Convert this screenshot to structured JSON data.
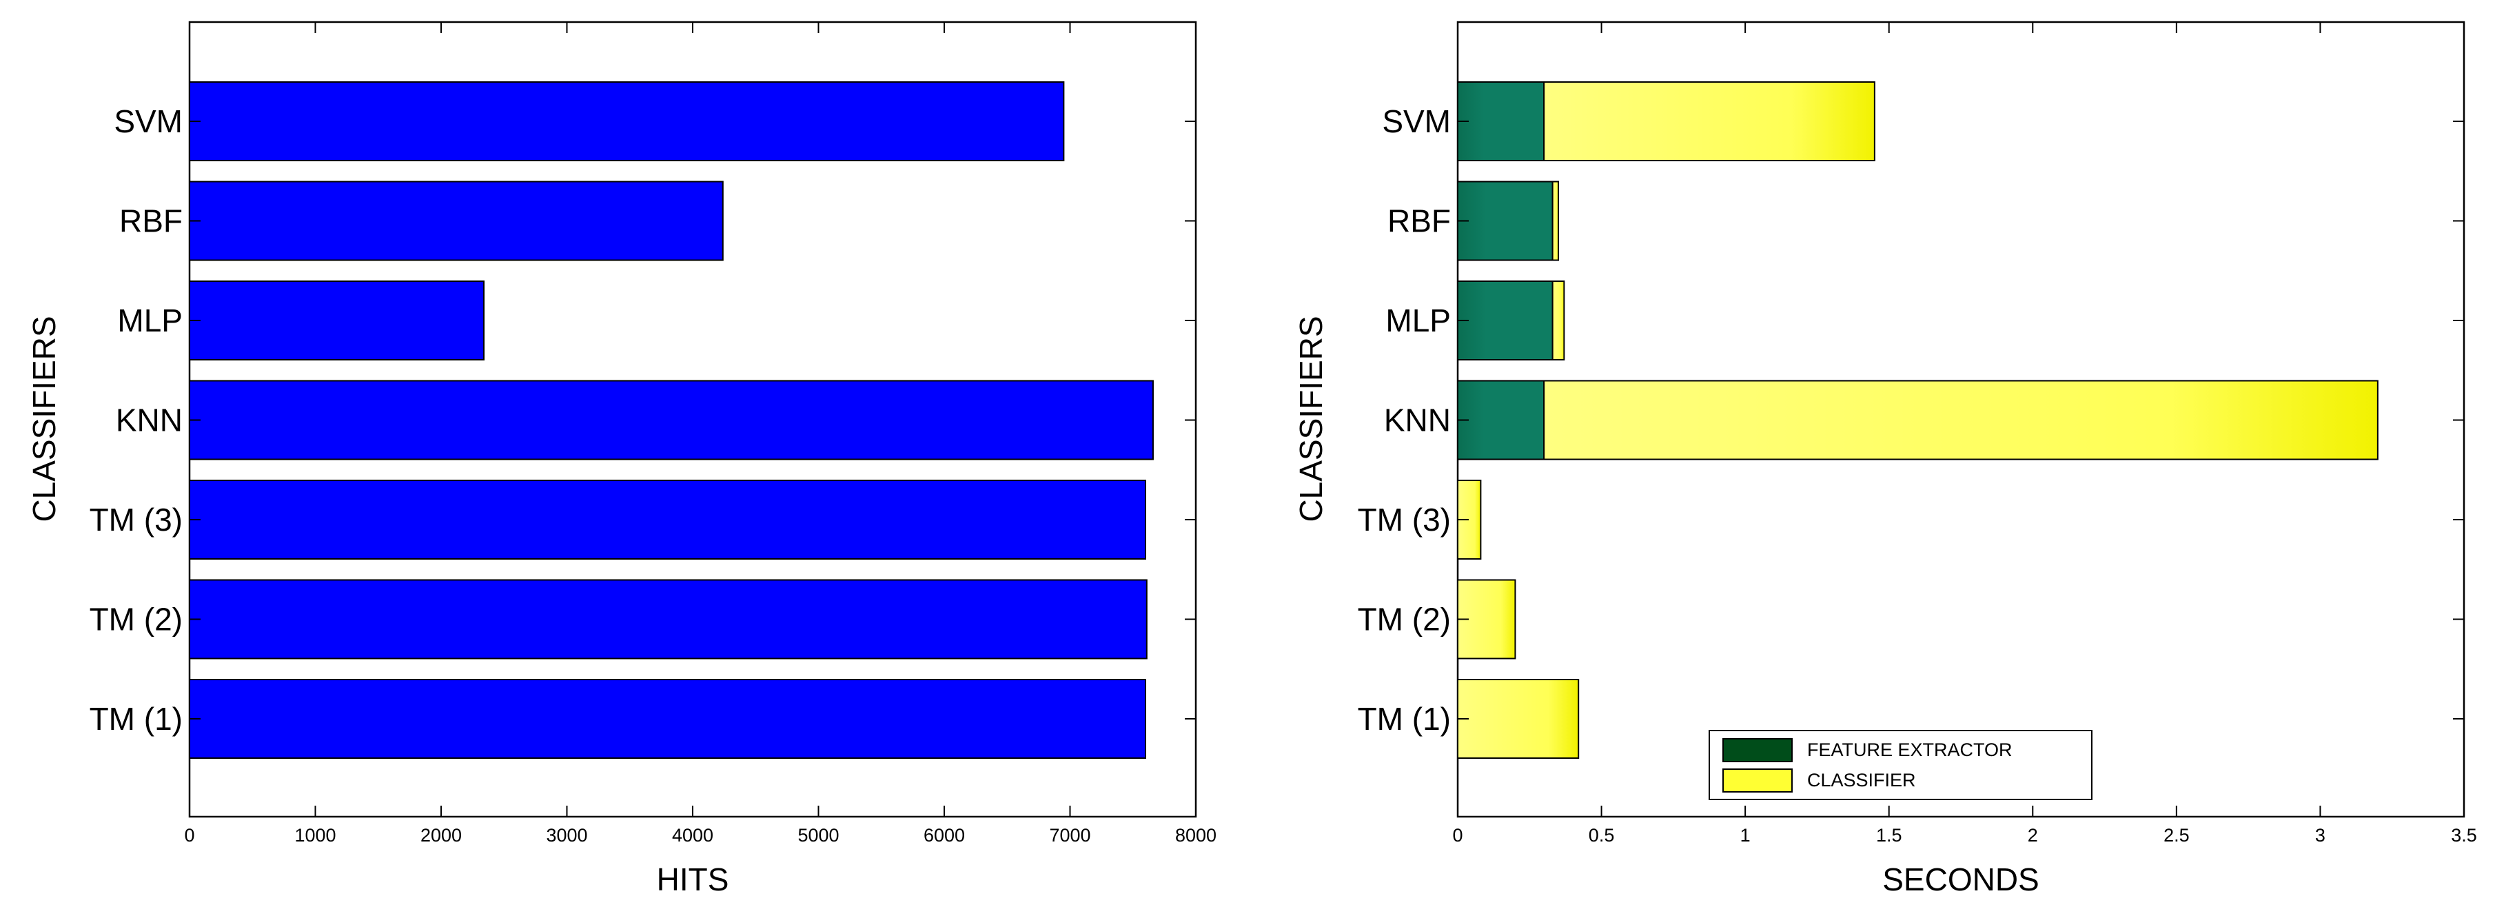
{
  "chart_data": [
    {
      "type": "bar",
      "orientation": "horizontal",
      "categories": [
        "SVM",
        "RBF",
        "MLP",
        "KNN",
        "TM (3)",
        "TM (2)",
        "TM (1)"
      ],
      "series": [
        {
          "values": [
            6950,
            4240,
            2340,
            7660,
            7600,
            7610,
            7600
          ],
          "color": "#0000ff"
        }
      ],
      "xlabel": "HITS",
      "ylabel": "CLASSIFIERS",
      "xlim": [
        0,
        8000
      ],
      "xticks": [
        "0",
        "1000",
        "2000",
        "3000",
        "4000",
        "5000",
        "6000",
        "7000",
        "8000"
      ],
      "grid": false
    },
    {
      "type": "bar",
      "orientation": "horizontal",
      "stacked": true,
      "categories": [
        "SVM",
        "RBF",
        "MLP",
        "KNN",
        "TM (3)",
        "TM (2)",
        "TM (1)"
      ],
      "series": [
        {
          "name": "FEATURE EXTRACTOR",
          "values": [
            0.3,
            0.33,
            0.33,
            0.3,
            0,
            0,
            0
          ],
          "color": "#0d7a5f"
        },
        {
          "name": "CLASSIFIER",
          "values": [
            1.15,
            0.02,
            0.04,
            2.9,
            0.08,
            0.2,
            0.42
          ],
          "color": "#ffff33"
        }
      ],
      "xlabel": "SECONDS",
      "ylabel": "CLASSIFIERS",
      "xlim": [
        0,
        3.5
      ],
      "xticks": [
        "0",
        "0.5",
        "1",
        "1.5",
        "2",
        "2.5",
        "3",
        "3.5"
      ],
      "legend": "bottom-center",
      "grid": false
    }
  ]
}
